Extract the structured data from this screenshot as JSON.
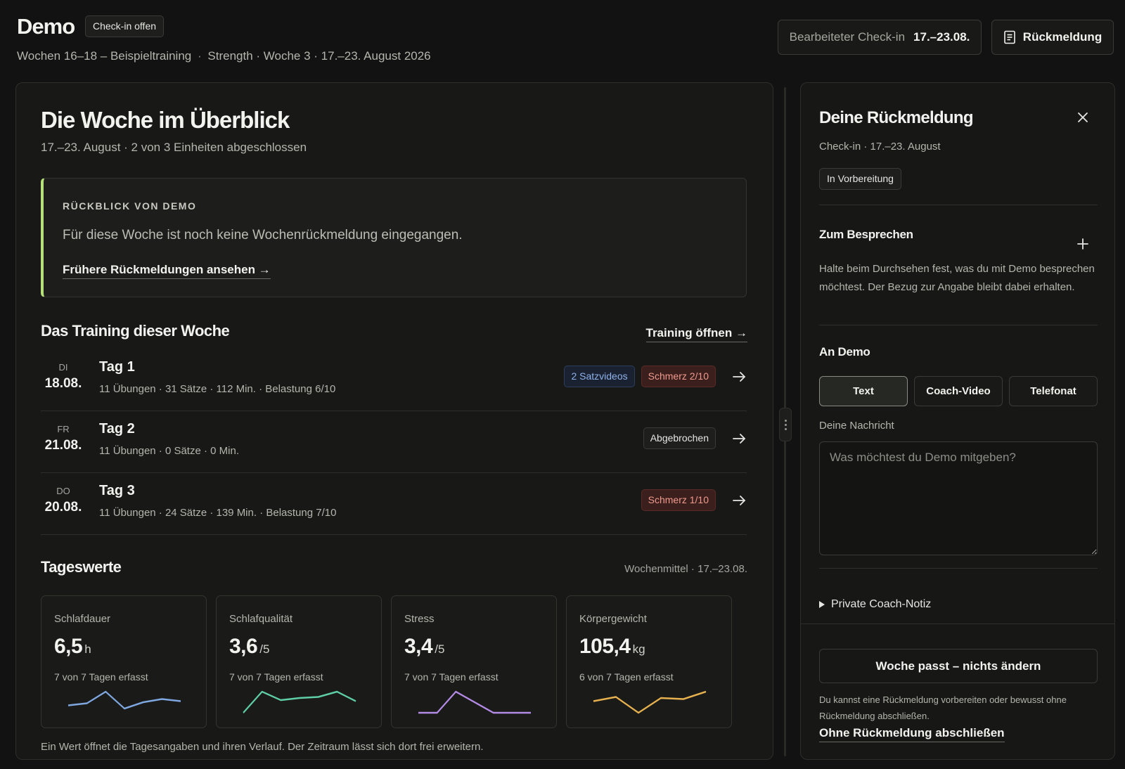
{
  "header": {
    "title": "Demo",
    "status_chip": "Check-in offen",
    "subtitle_program": "Wochen 16–18 – Beispieltraining",
    "subtitle_sep": "·",
    "subtitle_block": "Strength · Woche 3",
    "subtitle_dates": "· 17.–23. August 2026",
    "checkin_label": "Bearbeiteter Check-in",
    "checkin_value": "17.–23.08.",
    "feedback_button": "Rückmeldung",
    "feedback_icon": "document-icon"
  },
  "overview": {
    "title": "Die Woche im Überblick",
    "subtitle": "17.–23. August · 2 von 3 Einheiten abgeschlossen",
    "accent_color": "#b6e07a",
    "review": {
      "label": "RÜCKBLICK VON DEMO",
      "text": "Für diese Woche ist noch keine Wochenrückmeldung eingegangen.",
      "link": "Frühere Rückmeldungen ansehen →"
    }
  },
  "training": {
    "title": "Das Training dieser Woche",
    "open_link": "Training öffnen →",
    "days": [
      {
        "dow": "DI",
        "date": "18.08.",
        "name": "Tag 1",
        "meta": "11 Übungen · 31 Sätze · 112 Min. · Belastung 6/10",
        "badges": [
          {
            "text": "2 Satzvideos",
            "kind": "blue"
          },
          {
            "text": "Schmerz 2/10",
            "kind": "red"
          }
        ]
      },
      {
        "dow": "FR",
        "date": "21.08.",
        "name": "Tag 2",
        "meta": "11 Übungen · 0 Sätze · 0 Min.",
        "badges": [
          {
            "text": "Abgebrochen",
            "kind": "neutral"
          }
        ]
      },
      {
        "dow": "DO",
        "date": "20.08.",
        "name": "Tag 3",
        "meta": "11 Übungen · 24 Sätze · 139 Min. · Belastung 7/10",
        "badges": [
          {
            "text": "Schmerz 1/10",
            "kind": "red"
          }
        ]
      }
    ]
  },
  "daily": {
    "title": "Tageswerte",
    "week_avg": "Wochenmittel · 17.–23.08.",
    "footnote": "Ein Wert öffnet die Tagesangaben und ihren Verlauf. Der Zeitraum lässt sich dort frei erweitern.",
    "metrics": [
      {
        "label": "Schlafdauer",
        "value": "6,5",
        "unit": "h",
        "count": "7 von 7 Tagen erfasst",
        "color": "#7fa7e0",
        "trend": [
          0.35,
          0.45,
          1.0,
          0.2,
          0.5,
          0.65,
          0.55
        ]
      },
      {
        "label": "Schlafqualität",
        "value": "3,6",
        "unit": "/5",
        "count": "7 von 7 Tagen erfasst",
        "color": "#5fcfa8",
        "trend": [
          0.0,
          1.0,
          0.6,
          0.7,
          0.75,
          1.0,
          0.55
        ]
      },
      {
        "label": "Stress",
        "value": "3,4",
        "unit": "/5",
        "count": "7 von 7 Tagen erfasst",
        "color": "#b48be6",
        "trend": [
          0.0,
          0.0,
          1.0,
          0.5,
          0.0,
          0.0,
          0.0
        ]
      },
      {
        "label": "Körpergewicht",
        "value": "105,4",
        "unit": "kg",
        "count": "6 von 7 Tagen erfasst",
        "color": "#e6b14e",
        "trend": [
          0.55,
          0.75,
          0.0,
          0.7,
          0.65,
          1.0
        ]
      }
    ]
  },
  "side": {
    "title": "Deine Rückmeldung",
    "subtitle": "Check-in · 17.–23. August",
    "status_chip": "In Vorbereitung",
    "discuss_title": "Zum Besprechen",
    "discuss_help": "Halte beim Durchsehen fest, was du mit Demo besprechen möchtest. Der Bezug zur Angabe bleibt dabei erhalten.",
    "to_title": "An Demo",
    "tabs": [
      "Text",
      "Coach-Video",
      "Telefonat"
    ],
    "message_label": "Deine Nachricht",
    "message_placeholder": "Was möchtest du Demo mitgeben?",
    "private_note": "Private Coach-Notiz",
    "primary_button": "Woche passt – nichts ändern",
    "footer_help": "Du kannst eine Rückmeldung vorbereiten oder bewusst ohne Rückmeldung abschließen.",
    "finish_link": "Ohne Rückmeldung abschließen"
  }
}
